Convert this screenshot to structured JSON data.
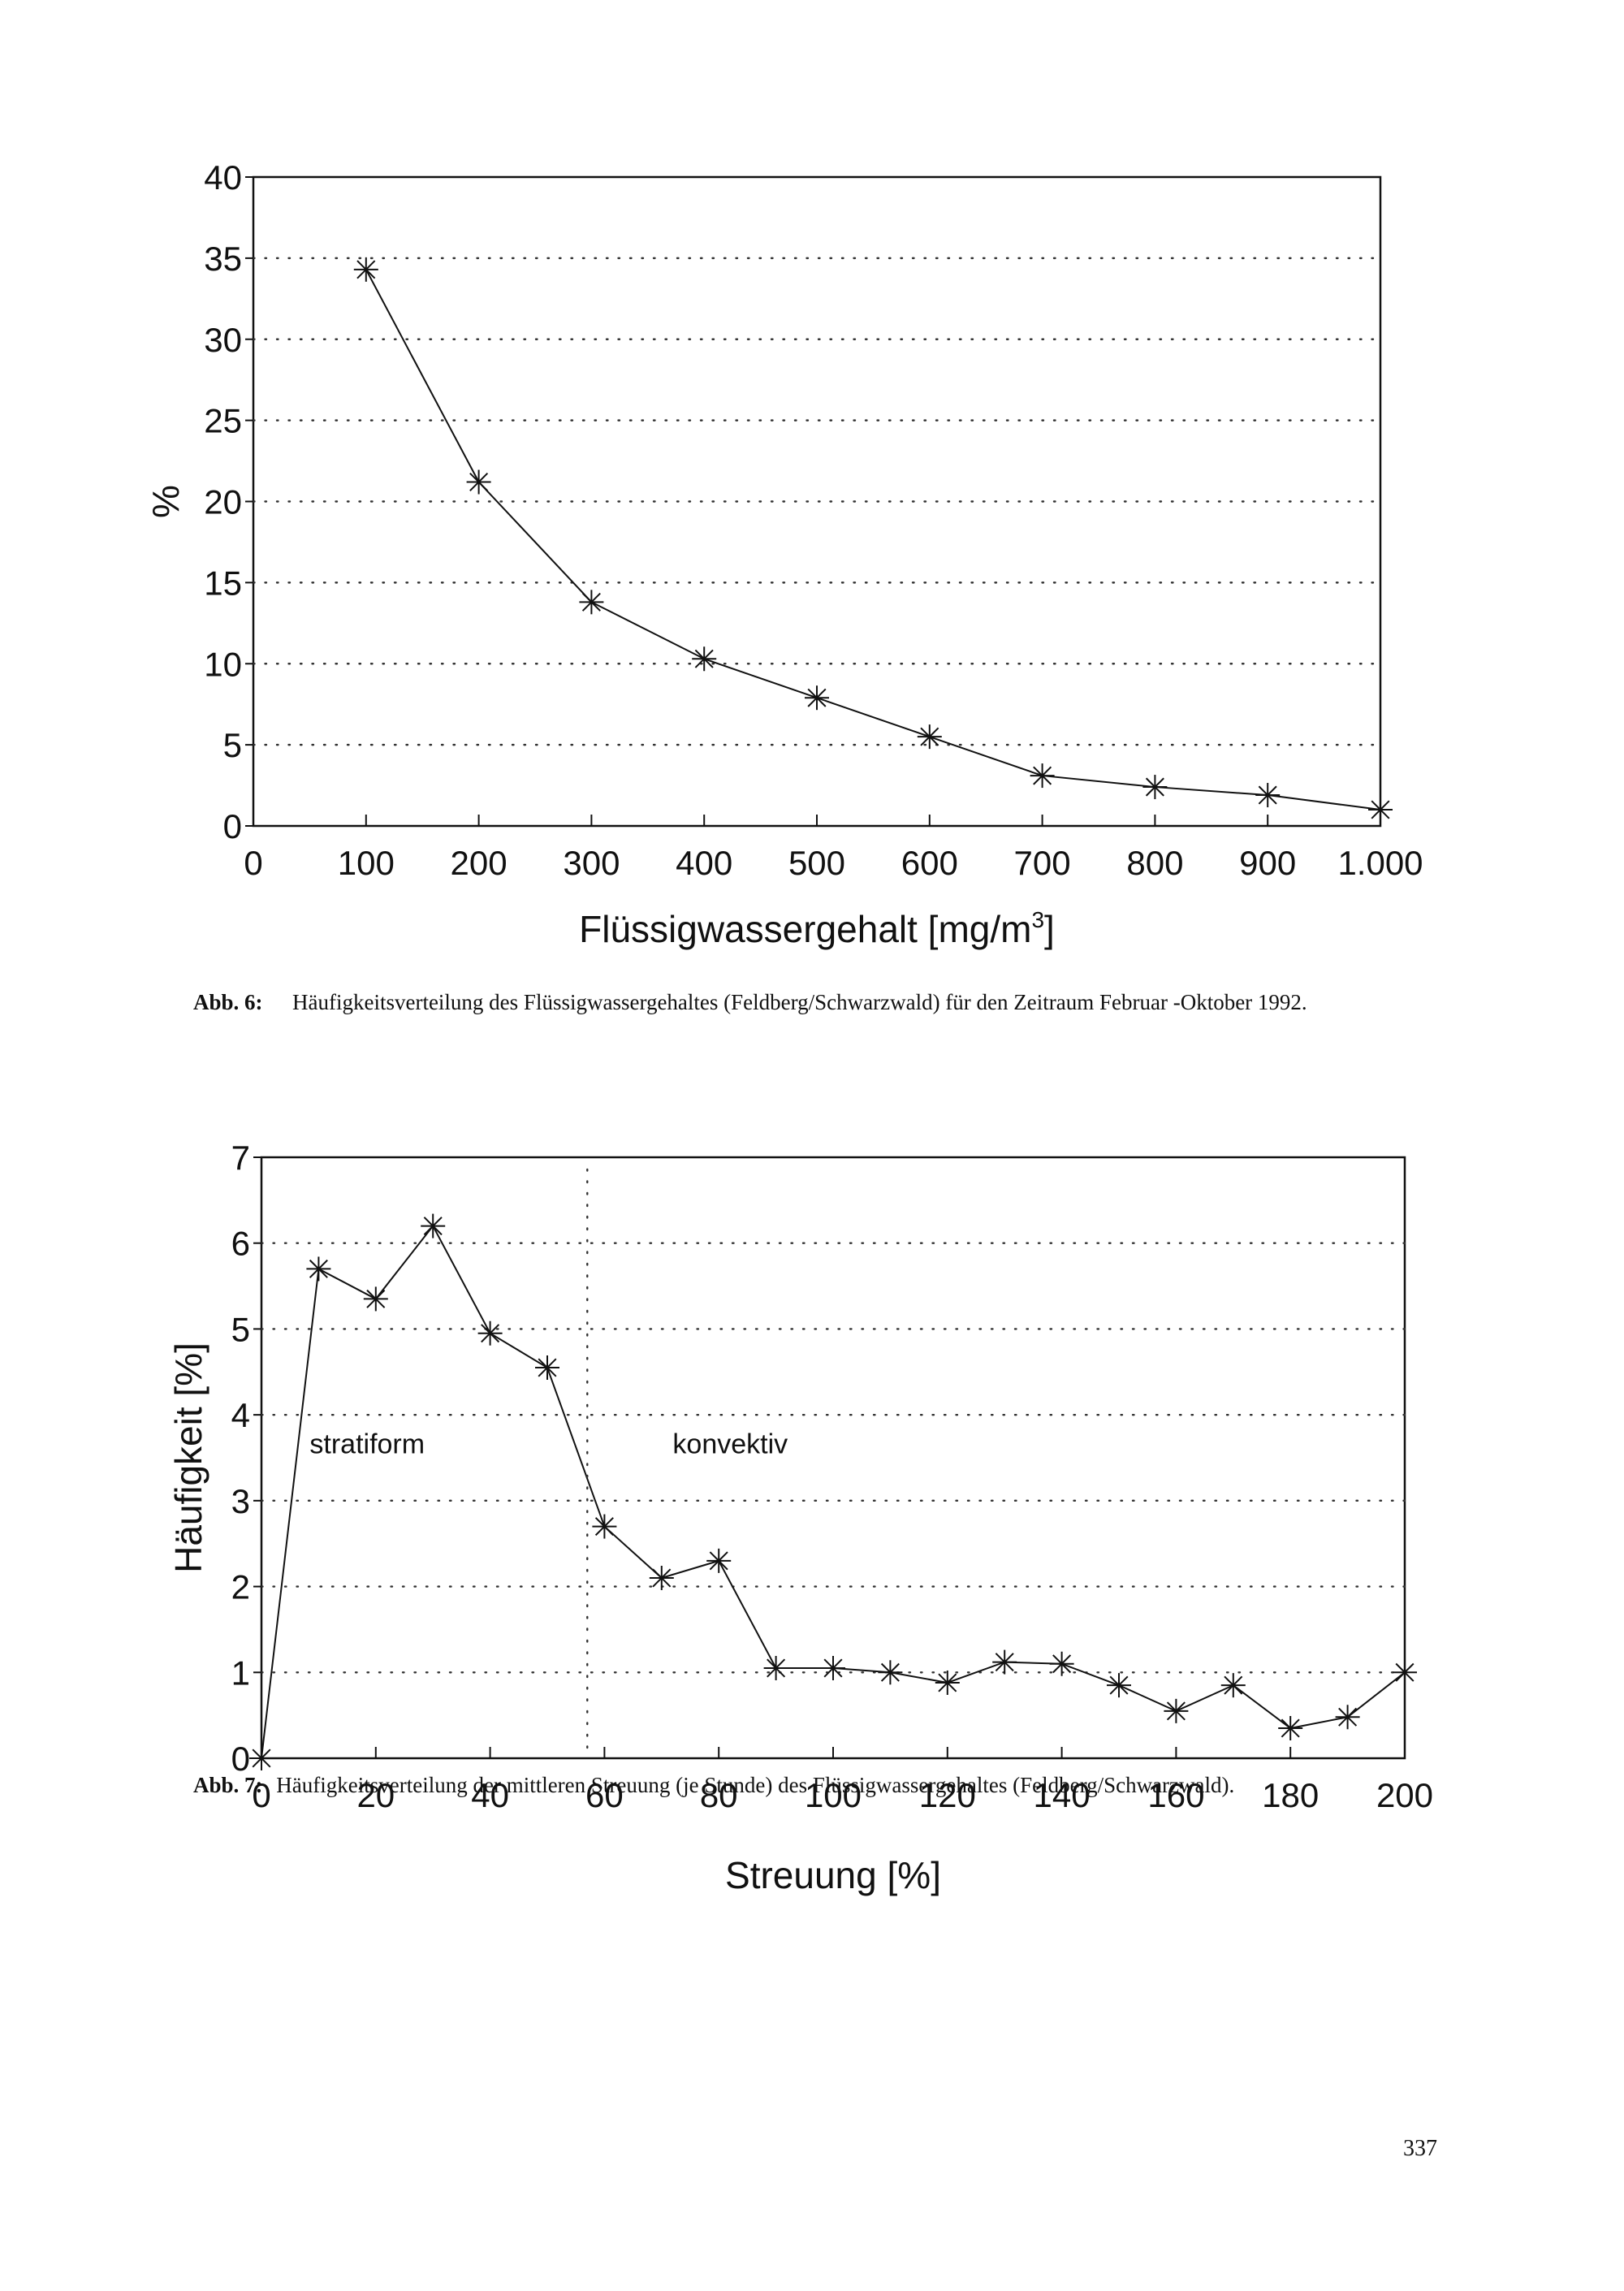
{
  "chart_data": [
    {
      "type": "line",
      "x": [
        0,
        100,
        200,
        300,
        400,
        500,
        600,
        700,
        800,
        900,
        1000
      ],
      "values": [
        null,
        34.3,
        21.2,
        13.8,
        10.3,
        7.9,
        5.5,
        3.1,
        2.4,
        1.9,
        1.0
      ],
      "xlabel_main": "Flüssigwassergehalt [mg/m",
      "xlabel_sup": "3",
      "xlabel_tail": "]",
      "ylabel": "%",
      "xlim": [
        0,
        1000
      ],
      "ylim": [
        0,
        40
      ],
      "xticks": [
        "0",
        "100",
        "200",
        "300",
        "400",
        "500",
        "600",
        "700",
        "800",
        "900",
        "1.000"
      ],
      "yticks": [
        "0",
        "5",
        "10",
        "15",
        "20",
        "25",
        "30",
        "35",
        "40"
      ],
      "grid": "dotted horizontal",
      "marker": "asterisk"
    },
    {
      "type": "line",
      "x": [
        0,
        10,
        20,
        30,
        40,
        50,
        60,
        70,
        80,
        90,
        100,
        110,
        120,
        130,
        140,
        150,
        160,
        170,
        180,
        190,
        200
      ],
      "values": [
        0,
        5.7,
        5.35,
        6.2,
        4.95,
        4.55,
        2.7,
        2.1,
        2.3,
        1.05,
        1.05,
        1.0,
        0.88,
        1.12,
        1.1,
        0.85,
        0.55,
        0.85,
        0.35,
        0.48,
        1.0
      ],
      "xlabel": "Streuung [%]",
      "ylabel": "Häufigkeit [%]",
      "xlim": [
        0,
        200
      ],
      "ylim": [
        0,
        7
      ],
      "xticks": [
        "0",
        "20",
        "40",
        "60",
        "80",
        "100",
        "120",
        "140",
        "160",
        "180",
        "200"
      ],
      "yticks": [
        "0",
        "1",
        "2",
        "3",
        "4",
        "5",
        "6",
        "7"
      ],
      "divider_x": 57,
      "annotations": [
        "stratiform",
        "konvektiv"
      ],
      "grid": "dotted horizontal",
      "marker": "asterisk"
    }
  ],
  "captions": {
    "fig6_label": "Abb. 6:",
    "fig6_text": "Häufigkeitsverteilung des Flüssigwassergehaltes (Feldberg/Schwarzwald) für den Zeitraum Februar -Oktober 1992.",
    "fig7_label": "Abb. 7:",
    "fig7_text": "Häufigkeitsverteilung der mittleren Streuung (je Stunde) des Flüssigwassergehaltes (Feldberg/Schwarzwald)."
  },
  "page_number": "337"
}
